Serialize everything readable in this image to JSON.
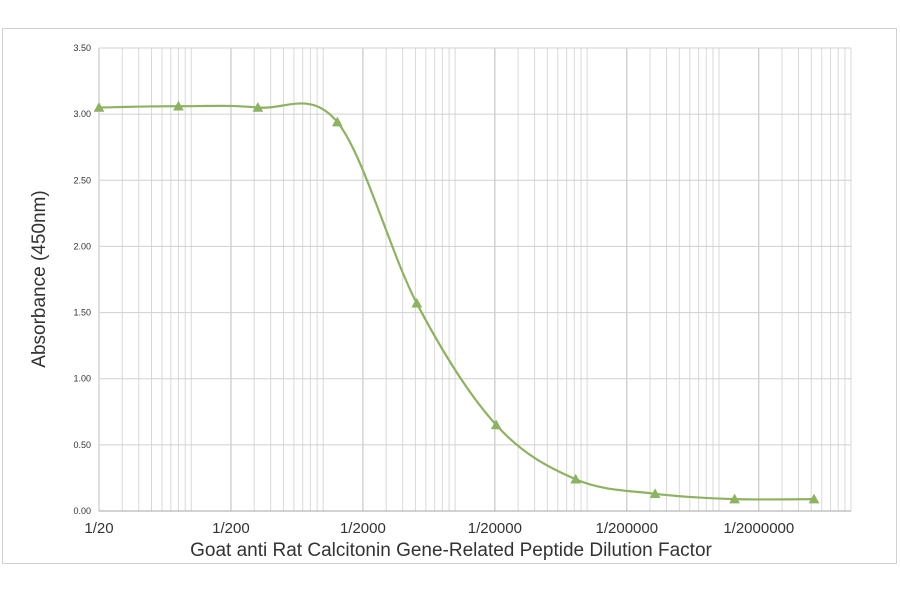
{
  "chart_data": {
    "type": "line",
    "xlabel": "Goat anti Rat Calcitonin Gene-Related Peptide Dilution Factor",
    "ylabel": "Absorbance (450nm)",
    "x_scale": "log",
    "xlim": [
      20,
      10000000
    ],
    "ylim": [
      0,
      3.5
    ],
    "x_ticks": [
      {
        "value": 20,
        "label": "1/20"
      },
      {
        "value": 200,
        "label": "1/200"
      },
      {
        "value": 2000,
        "label": "1/2000"
      },
      {
        "value": 20000,
        "label": "1/20000"
      },
      {
        "value": 200000,
        "label": "1/200000"
      },
      {
        "value": 2000000,
        "label": "1/2000000"
      }
    ],
    "y_ticks": [
      "0.00",
      "0.50",
      "1.00",
      "1.50",
      "2.00",
      "2.50",
      "3.00",
      "3.50"
    ],
    "grid": true,
    "series": [
      {
        "color": "#8db360",
        "marker": "triangle",
        "x": [
          20,
          80,
          320,
          1280,
          5120,
          20480,
          81920,
          327680,
          1310720,
          5242880
        ],
        "y": [
          3.05,
          3.06,
          3.05,
          2.94,
          1.57,
          0.65,
          0.24,
          0.13,
          0.09,
          0.09
        ]
      }
    ]
  }
}
